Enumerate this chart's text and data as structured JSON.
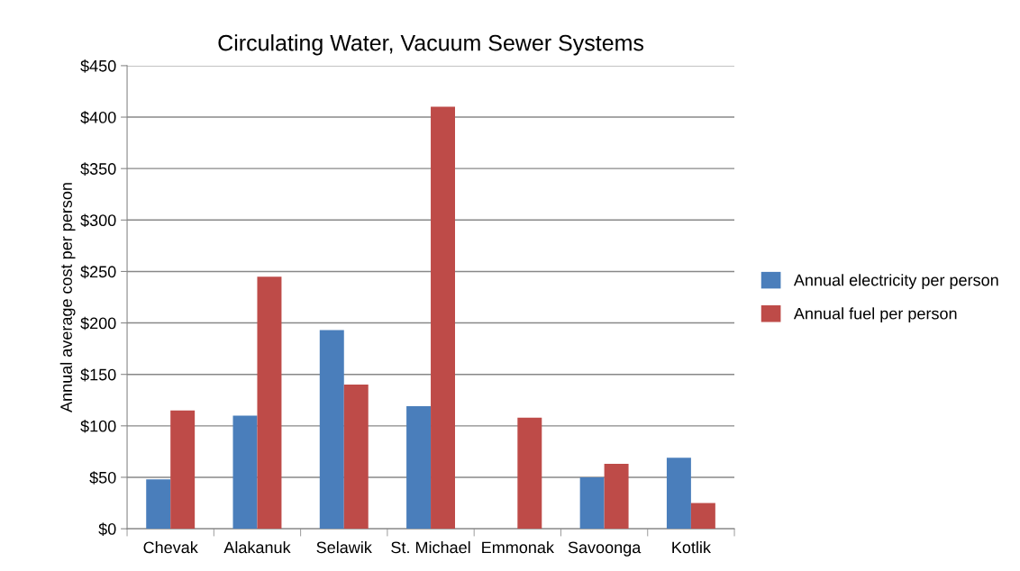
{
  "chart_data": {
    "type": "bar",
    "title": "Circulating Water, Vacuum Sewer Systems",
    "ylabel": "Annual average cost per person",
    "categories": [
      "Chevak",
      "Alakanuk",
      "Selawik",
      "St. Michael",
      "Emmonak",
      "Savoonga",
      "Kotlik"
    ],
    "series": [
      {
        "name": "Annual electricity per person",
        "color": "#4a7ebb",
        "values": [
          48,
          110,
          193,
          119,
          null,
          50,
          69
        ]
      },
      {
        "name": "Annual fuel per person",
        "color": "#be4b48",
        "values": [
          115,
          245,
          140,
          410,
          108,
          63,
          25
        ]
      }
    ],
    "ylim": [
      0,
      450
    ],
    "yticks": [
      {
        "value": 0,
        "label": "$0"
      },
      {
        "value": 50,
        "label": "$50"
      },
      {
        "value": 100,
        "label": "$100"
      },
      {
        "value": 150,
        "label": "$150"
      },
      {
        "value": 200,
        "label": "$200"
      },
      {
        "value": 250,
        "label": "$250"
      },
      {
        "value": 300,
        "label": "$300"
      },
      {
        "value": 350,
        "label": "$350"
      },
      {
        "value": 400,
        "label": "$400"
      },
      {
        "value": 450,
        "label": "$450"
      }
    ],
    "grid": "y",
    "legend": "right"
  }
}
